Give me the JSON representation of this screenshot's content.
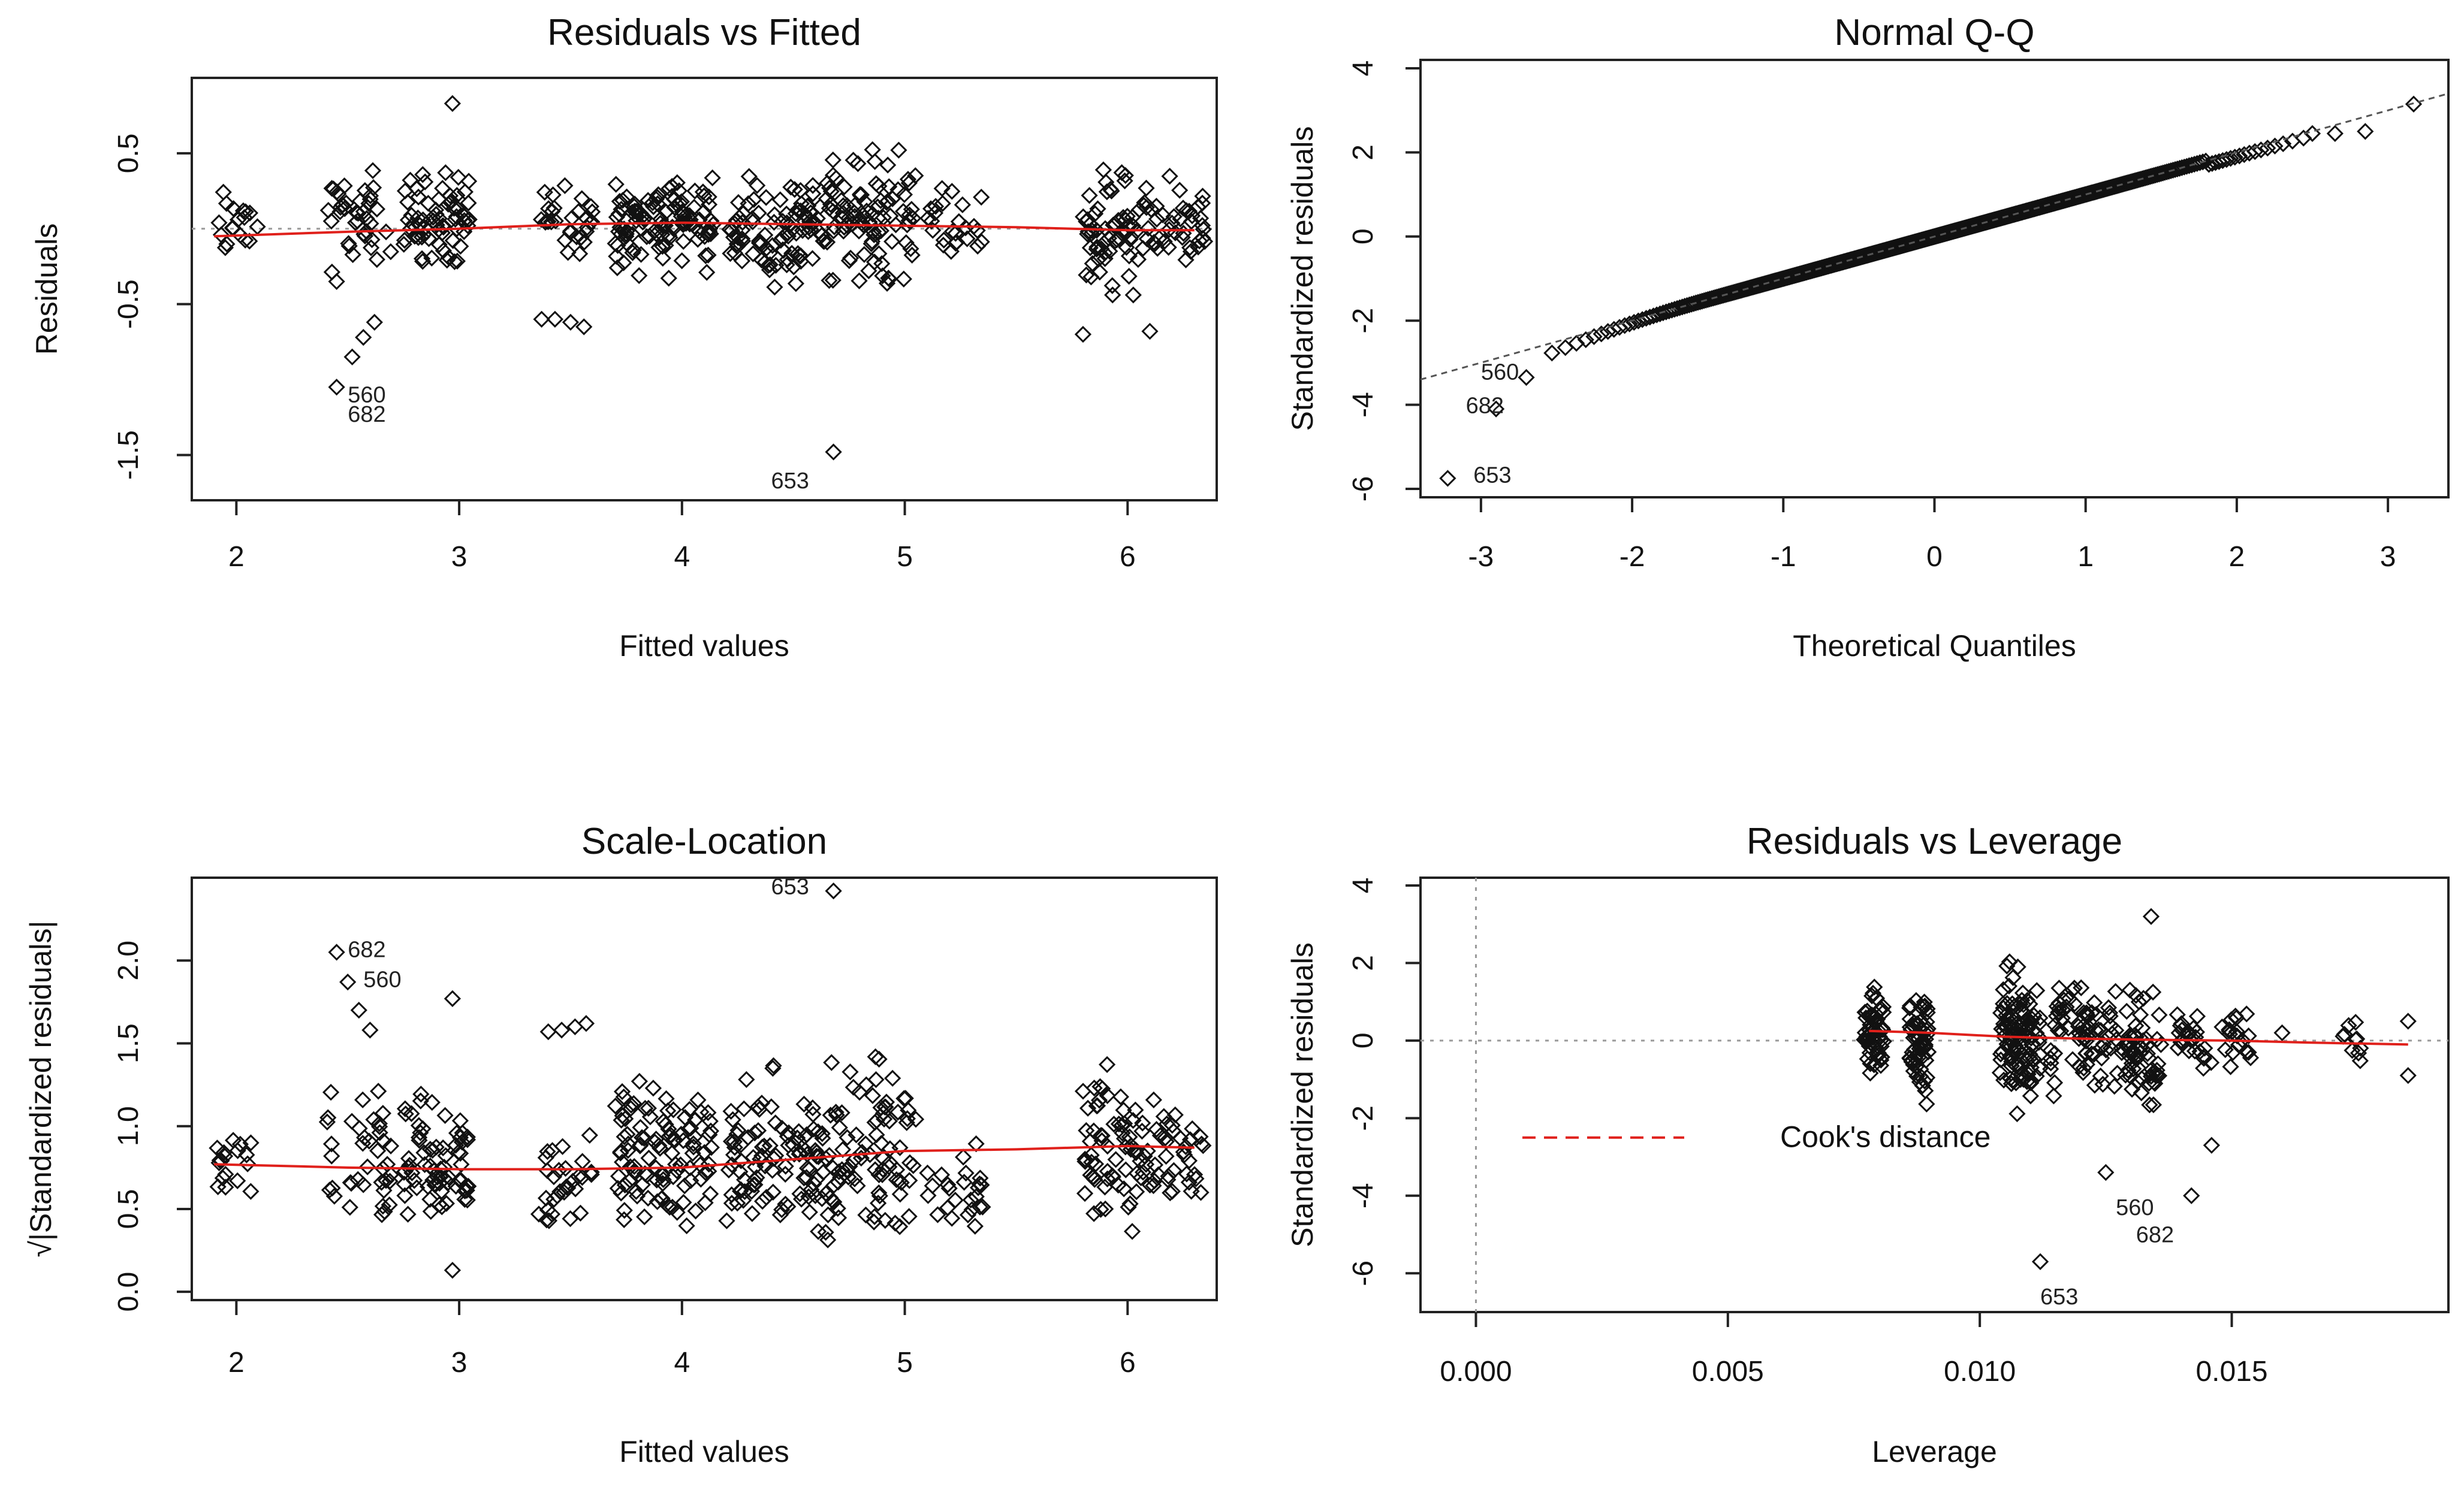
{
  "chart_data": [
    {
      "type": "scatter",
      "title": "Residuals vs Fitted",
      "xlabel": "Fitted values",
      "ylabel": "Residuals",
      "xlim": [
        1.8,
        6.4
      ],
      "ylim": [
        -1.8,
        1.0
      ],
      "xticks": [
        "2",
        "3",
        "4",
        "5",
        "6"
      ],
      "yticks": [
        "0.5",
        "-0.5",
        "-1.5"
      ],
      "reference_line": 0,
      "smooth": {
        "x": [
          1.9,
          2.5,
          3.0,
          3.5,
          4.0,
          4.5,
          5.0,
          5.5,
          6.0,
          6.3
        ],
        "y": [
          -0.05,
          -0.02,
          0.0,
          0.03,
          0.04,
          0.03,
          0.02,
          0.01,
          -0.01,
          -0.01
        ]
      },
      "clusters": [
        {
          "x": [
            1.9,
            2.1
          ],
          "y": [
            -0.3,
            0.35
          ],
          "n": 18
        },
        {
          "x": [
            2.4,
            2.7
          ],
          "y": [
            -0.4,
            0.5
          ],
          "n": 40
        },
        {
          "x": [
            2.75,
            3.05
          ],
          "y": [
            -0.35,
            0.5
          ],
          "n": 70
        },
        {
          "x": [
            3.35,
            3.6
          ],
          "y": [
            -0.3,
            0.35
          ],
          "n": 30
        },
        {
          "x": [
            3.7,
            4.15
          ],
          "y": [
            -0.4,
            0.5
          ],
          "n": 110
        },
        {
          "x": [
            4.2,
            4.6
          ],
          "y": [
            -0.45,
            0.45
          ],
          "n": 90
        },
        {
          "x": [
            4.6,
            5.05
          ],
          "y": [
            -0.5,
            0.65
          ],
          "n": 100
        },
        {
          "x": [
            5.1,
            5.35
          ],
          "y": [
            -0.3,
            0.35
          ],
          "n": 25
        },
        {
          "x": [
            5.8,
            6.05
          ],
          "y": [
            -0.6,
            0.55
          ],
          "n": 60
        },
        {
          "x": [
            6.05,
            6.35
          ],
          "y": [
            -0.35,
            0.4
          ],
          "n": 45
        }
      ],
      "points": [
        [
          2.45,
          -1.05
        ],
        [
          2.52,
          -0.85
        ],
        [
          2.57,
          -0.72
        ],
        [
          2.62,
          -0.62
        ],
        [
          2.97,
          0.83
        ],
        [
          3.37,
          -0.6
        ],
        [
          3.43,
          -0.6
        ],
        [
          3.5,
          -0.62
        ],
        [
          3.56,
          -0.65
        ],
        [
          4.68,
          -1.48
        ],
        [
          2.45,
          -0.35
        ],
        [
          5.8,
          -0.7
        ],
        [
          6.1,
          -0.68
        ]
      ],
      "labels": [
        {
          "text": "560",
          "x": 2.5,
          "y": -1.15
        },
        {
          "text": "682",
          "x": 2.5,
          "y": -1.28
        },
        {
          "text": "653",
          "x": 4.4,
          "y": -1.72
        }
      ]
    },
    {
      "type": "scatter",
      "title": "Normal Q-Q",
      "xlabel": "Theoretical Quantiles",
      "ylabel": "Standardized residuals",
      "xlim": [
        -3.4,
        3.4
      ],
      "ylim": [
        -6.2,
        4.2
      ],
      "xticks": [
        "-3",
        "-2",
        "-1",
        "0",
        "1",
        "2",
        "3"
      ],
      "yticks": [
        "4",
        "2",
        "0",
        "-2",
        "-4",
        "-6"
      ],
      "qq_line": {
        "x": [
          -3.4,
          3.4
        ],
        "y": [
          -3.4,
          3.4
        ]
      },
      "n_points": 620,
      "extreme_points": [
        [
          -3.22,
          -5.75
        ],
        [
          -2.9,
          -4.1
        ],
        [
          -2.7,
          -3.35
        ],
        [
          3.17,
          3.15
        ],
        [
          2.85,
          2.5
        ],
        [
          2.65,
          2.45
        ],
        [
          2.5,
          2.45
        ]
      ],
      "labels": [
        {
          "text": "560",
          "x": -3.0,
          "y": -3.4
        },
        {
          "text": "682",
          "x": -3.1,
          "y": -4.2
        },
        {
          "text": "653",
          "x": -3.05,
          "y": -5.85
        }
      ]
    },
    {
      "type": "scatter",
      "title": "Scale-Location",
      "xlabel": "Fitted values",
      "ylabel": "√|Standardized residuals|",
      "xlim": [
        1.8,
        6.4
      ],
      "ylim": [
        -0.05,
        2.5
      ],
      "xticks": [
        "2",
        "3",
        "4",
        "5",
        "6"
      ],
      "yticks": [
        "0.0",
        "0.5",
        "1.0",
        "1.5",
        "2.0"
      ],
      "smooth": {
        "x": [
          1.9,
          2.5,
          3.0,
          3.5,
          4.0,
          4.5,
          5.0,
          5.5,
          6.0,
          6.3
        ],
        "y": [
          0.77,
          0.75,
          0.74,
          0.74,
          0.75,
          0.8,
          0.85,
          0.86,
          0.88,
          0.87
        ]
      },
      "clusters": [
        {
          "x": [
            1.9,
            2.1
          ],
          "y": [
            0.28,
            1.1
          ],
          "n": 18
        },
        {
          "x": [
            2.4,
            2.7
          ],
          "y": [
            0.2,
            1.35
          ],
          "n": 40
        },
        {
          "x": [
            2.75,
            3.05
          ],
          "y": [
            0.15,
            1.35
          ],
          "n": 70
        },
        {
          "x": [
            3.35,
            3.6
          ],
          "y": [
            0.15,
            1.1
          ],
          "n": 30
        },
        {
          "x": [
            3.7,
            4.15
          ],
          "y": [
            0.2,
            1.45
          ],
          "n": 110
        },
        {
          "x": [
            4.2,
            4.6
          ],
          "y": [
            0.15,
            1.45
          ],
          "n": 90
        },
        {
          "x": [
            4.6,
            5.05
          ],
          "y": [
            0.1,
            1.6
          ],
          "n": 100
        },
        {
          "x": [
            5.1,
            5.35
          ],
          "y": [
            0.25,
            1.05
          ],
          "n": 25
        },
        {
          "x": [
            5.8,
            6.05
          ],
          "y": [
            0.15,
            1.65
          ],
          "n": 60
        },
        {
          "x": [
            6.05,
            6.35
          ],
          "y": [
            0.3,
            1.3
          ],
          "n": 45
        }
      ],
      "points": [
        [
          2.45,
          2.05
        ],
        [
          2.5,
          1.87
        ],
        [
          2.55,
          1.7
        ],
        [
          2.6,
          1.58
        ],
        [
          2.97,
          1.77
        ],
        [
          3.4,
          1.57
        ],
        [
          3.46,
          1.58
        ],
        [
          3.52,
          1.6
        ],
        [
          3.57,
          1.62
        ],
        [
          4.68,
          2.42
        ],
        [
          2.97,
          0.13
        ]
      ],
      "labels": [
        {
          "text": "682",
          "x": 2.5,
          "y": 2.02
        },
        {
          "text": "560",
          "x": 2.57,
          "y": 1.84
        },
        {
          "text": "653",
          "x": 4.4,
          "y": 2.4
        }
      ]
    },
    {
      "type": "scatter",
      "title": "Residuals vs Leverage",
      "xlabel": "Leverage",
      "ylabel": "Standardized residuals",
      "xlim": [
        -0.0011,
        0.0193
      ],
      "ylim": [
        -7.0,
        4.2
      ],
      "xticks": [
        "0.000",
        "0.005",
        "0.010",
        "0.015"
      ],
      "yticks": [
        "4",
        "2",
        "0",
        "-2",
        "-4",
        "-6"
      ],
      "reference_lines": {
        "x": 0,
        "y": 0
      },
      "legend": {
        "label": "Cook's distance",
        "position": "bottom-left"
      },
      "smooth": {
        "x": [
          0.0078,
          0.009,
          0.0105,
          0.012,
          0.0135,
          0.015,
          0.0165,
          0.0185
        ],
        "y": [
          0.25,
          0.2,
          0.1,
          0.05,
          0.02,
          0.0,
          -0.05,
          -0.1
        ]
      },
      "columns": [
        {
          "x": [
            0.0077,
            0.0081
          ],
          "y": [
            -1.4,
            1.8
          ],
          "n": 60
        },
        {
          "x": [
            0.0086,
            0.009
          ],
          "y": [
            -2.1,
            2.1
          ],
          "n": 60
        },
        {
          "x": [
            0.0104,
            0.0108
          ],
          "y": [
            -2.2,
            2.5
          ],
          "n": 60
        },
        {
          "x": [
            0.0108,
            0.0112
          ],
          "y": [
            -2.3,
            2.4
          ],
          "n": 50
        },
        {
          "x": [
            0.0114,
            0.0122
          ],
          "y": [
            -2.0,
            2.4
          ],
          "n": 50
        },
        {
          "x": [
            0.0122,
            0.013
          ],
          "y": [
            -1.6,
            1.6
          ],
          "n": 40
        },
        {
          "x": [
            0.013,
            0.0136
          ],
          "y": [
            -2.5,
            1.7
          ],
          "n": 45
        },
        {
          "x": [
            0.0139,
            0.0146
          ],
          "y": [
            -1.2,
            1.1
          ],
          "n": 25
        },
        {
          "x": [
            0.0148,
            0.0154
          ],
          "y": [
            -1.0,
            1.3
          ],
          "n": 20
        },
        {
          "x": [
            0.0172,
            0.0176
          ],
          "y": [
            -0.9,
            0.9
          ],
          "n": 10
        }
      ],
      "points": [
        [
          0.0112,
          -5.7
        ],
        [
          0.0125,
          -3.4
        ],
        [
          0.0142,
          -4.0
        ],
        [
          0.0134,
          3.2
        ],
        [
          0.0146,
          -2.7
        ],
        [
          0.0185,
          0.5
        ],
        [
          0.0185,
          -0.9
        ],
        [
          0.016,
          0.2
        ]
      ],
      "labels": [
        {
          "text": "560",
          "x": 0.0127,
          "y": -4.5
        },
        {
          "text": "682",
          "x": 0.0131,
          "y": -5.2
        },
        {
          "text": "653",
          "x": 0.0112,
          "y": -6.8
        }
      ]
    }
  ]
}
